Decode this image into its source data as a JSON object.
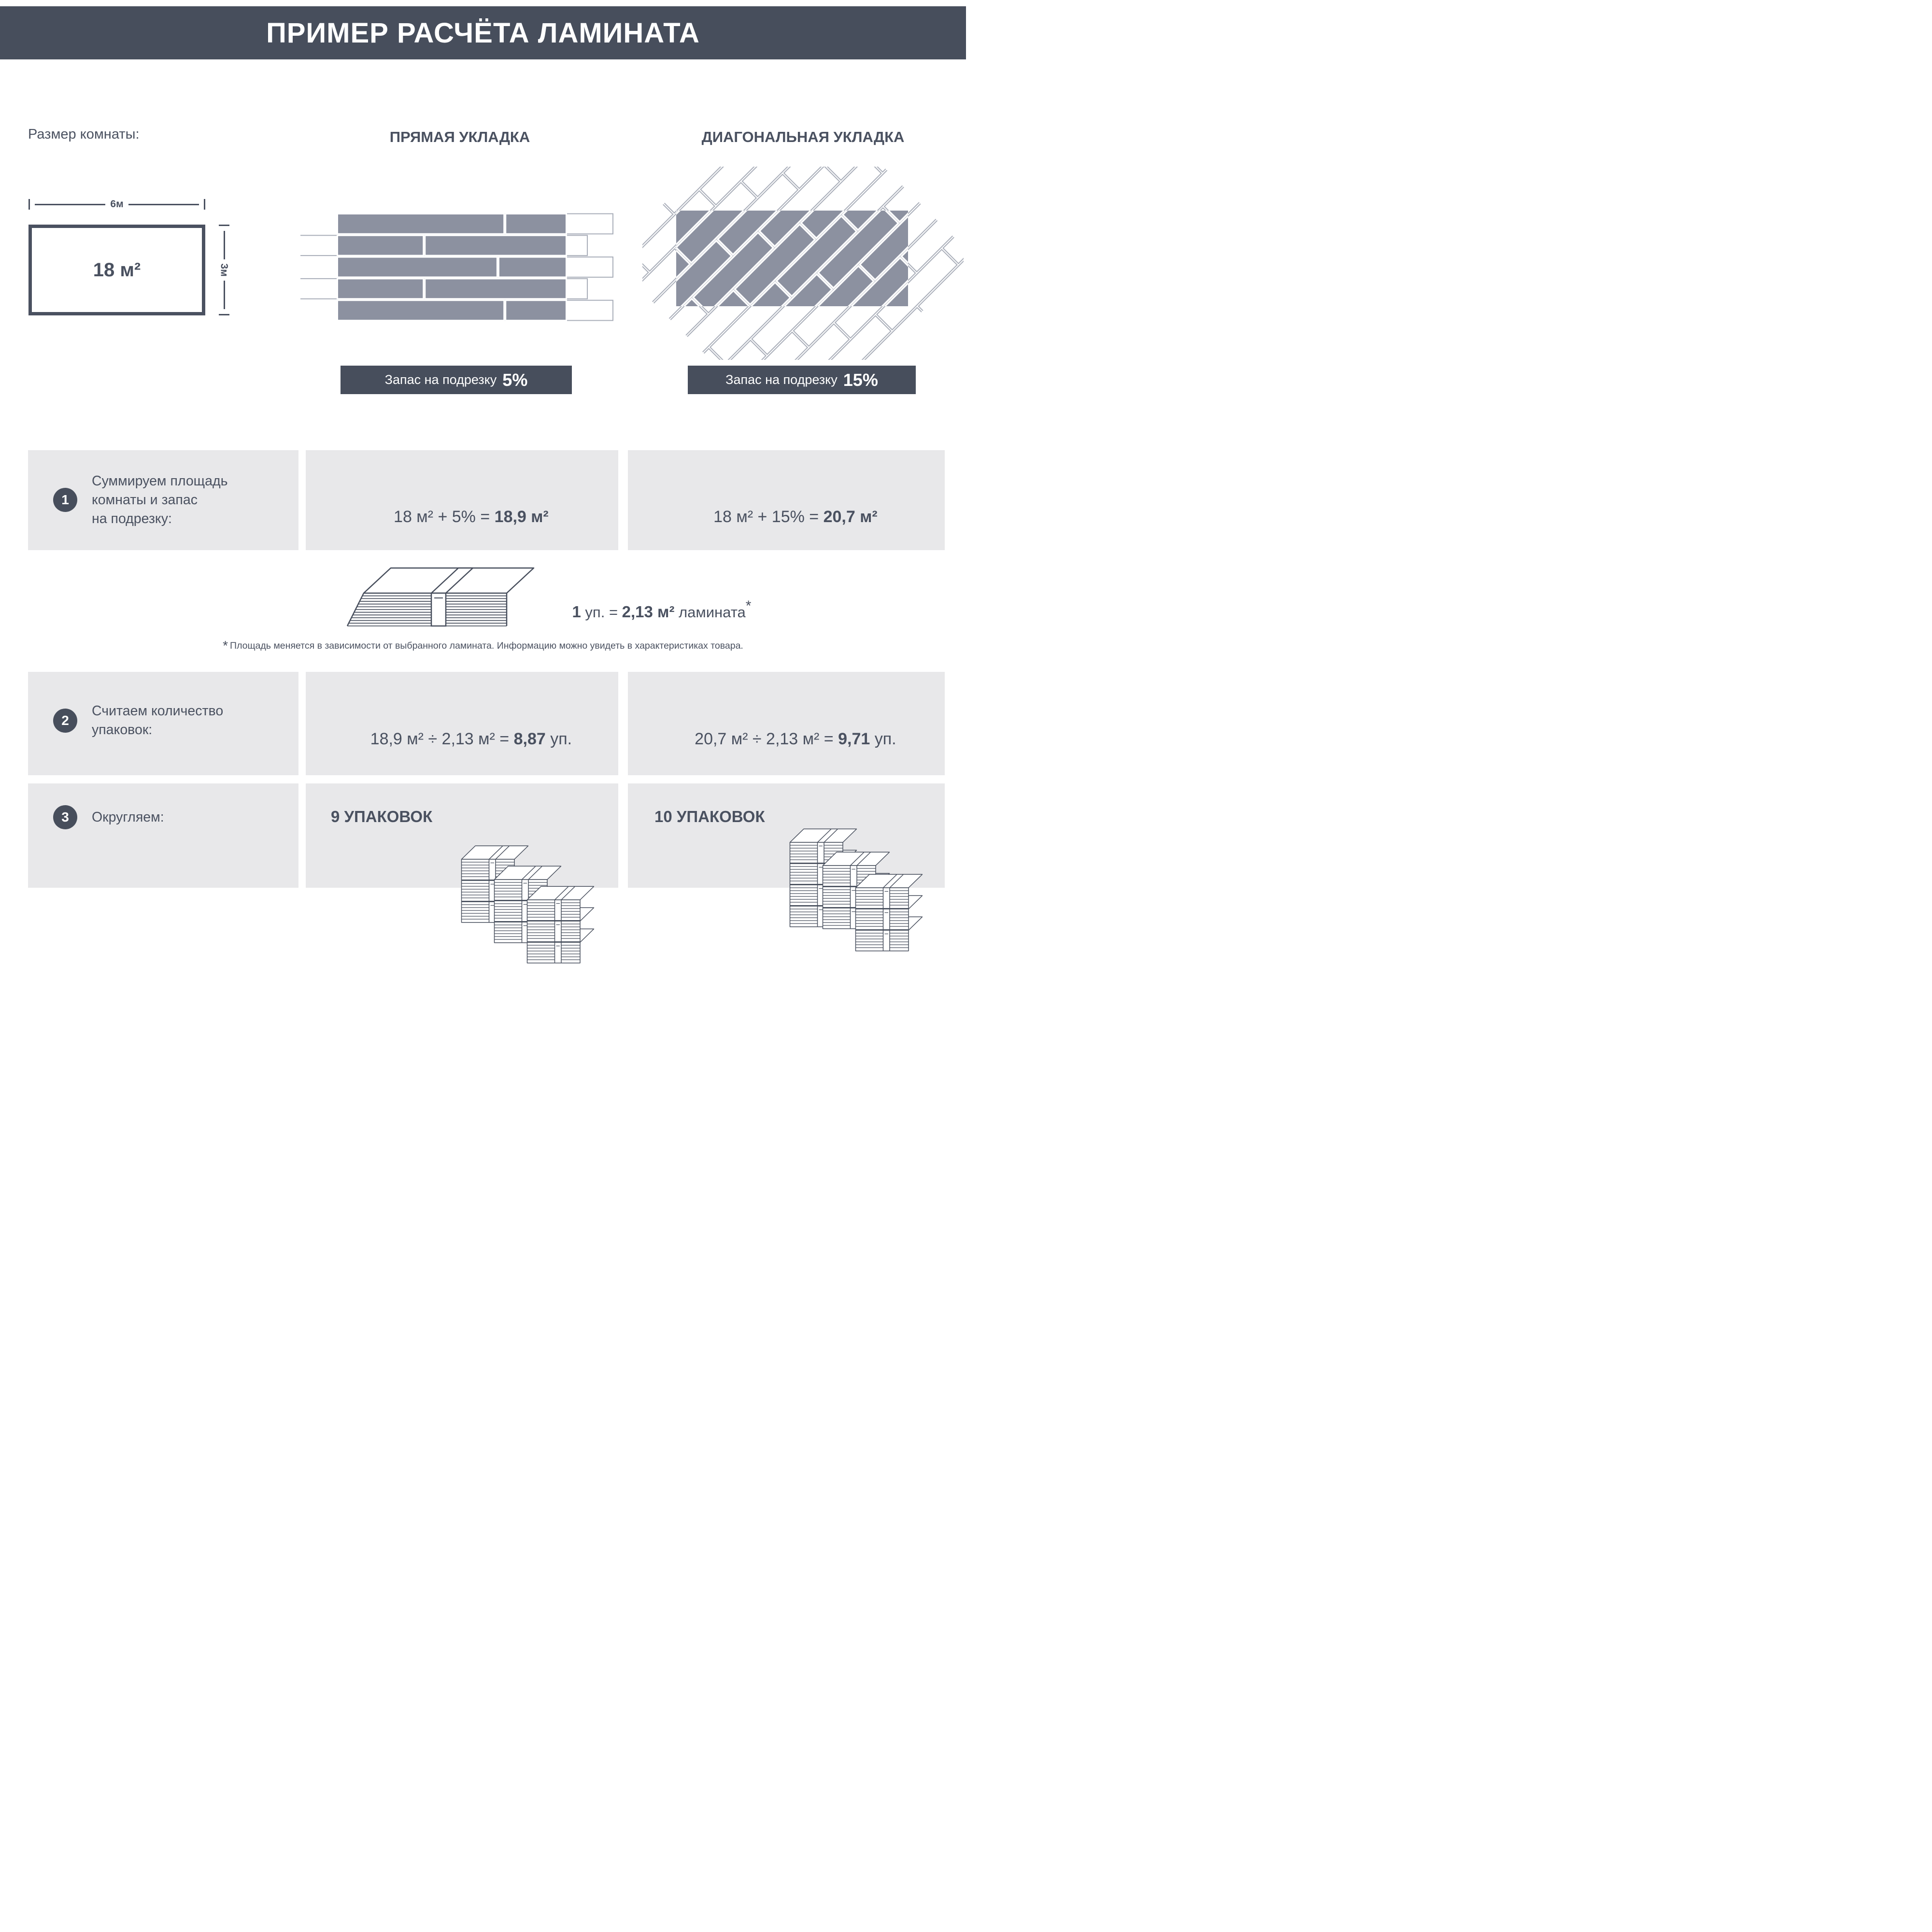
{
  "colors": {
    "slate": "#474e5c",
    "text": "#4a5160",
    "plank": "#8c91a0",
    "outline": "#a9aeb9",
    "band": "#e8e8ea"
  },
  "header": {
    "title": "ПРИМЕР РАСЧЁТА ЛАМИНАТА"
  },
  "room": {
    "size_label": "Размер комнаты:",
    "width": "6м",
    "height": "3м",
    "area": "18 м²"
  },
  "columns": {
    "straight": {
      "title": "ПРЯМАЯ УКЛАДКА",
      "allowance_label": "Запас на подрезку",
      "allowance_value": "5%"
    },
    "diagonal": {
      "title": "ДИАГОНАЛЬНАЯ УКЛАДКА",
      "allowance_label": "Запас на подрезку",
      "allowance_value": "15%"
    }
  },
  "steps": [
    {
      "number": "1",
      "label": "Суммируем площадь\nкомнаты и запас\nна подрезку:",
      "straight": {
        "lhs": "18 м² + 5% = ",
        "rhs": "18,9 м²",
        "tail": ""
      },
      "diagonal": {
        "lhs": "18 м² + 15% = ",
        "rhs": "20,7 м²",
        "tail": ""
      }
    },
    {
      "number": "2",
      "label": "Считаем количество\nупаковок:",
      "straight": {
        "lhs": "18,9 м² ÷ 2,13 м² = ",
        "rhs": "8,87",
        "tail": " уп."
      },
      "diagonal": {
        "lhs": "20,7 м² ÷ 2,13 м² = ",
        "rhs": "9,71",
        "tail": " уп."
      }
    },
    {
      "number": "3",
      "label": "Округляем:",
      "straight": {
        "result": "9 УПАКОВОК"
      },
      "diagonal": {
        "result": "10 УПАКОВОК"
      }
    }
  ],
  "package": {
    "n": "1",
    "mid": " уп. = ",
    "value": "2,13 м²",
    "tail": " ламината",
    "star": "*"
  },
  "footnote": {
    "star": "*",
    "text": "Площадь меняется в зависимости от выбранного ламината. Информацию можно увидеть в характеристиках товара."
  }
}
